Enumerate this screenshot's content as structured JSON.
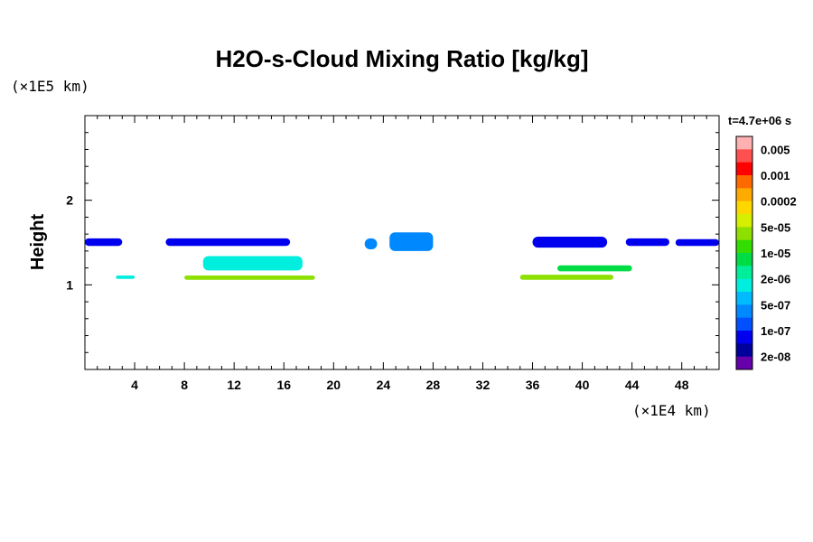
{
  "chart_data": {
    "type": "heatmap",
    "title": "H2O-s-Cloud Mixing Ratio [kg/kg]",
    "ylabel": "Height",
    "x_unit": "(×1E4 km)",
    "y_unit": "(×1E5 km)",
    "time_label": "t=4.7e+06 s",
    "xlim": [
      0,
      51
    ],
    "ylim": [
      0,
      3
    ],
    "x_ticks": [
      4,
      8,
      12,
      16,
      20,
      24,
      28,
      32,
      36,
      40,
      44,
      48
    ],
    "y_ticks": [
      1,
      2
    ],
    "colorbar": {
      "labels": [
        "0.005",
        "0.001",
        "0.0002",
        "5e-05",
        "1e-05",
        "2e-06",
        "5e-07",
        "1e-07",
        "2e-08"
      ],
      "colors": [
        "#ffb0b0",
        "#ff5050",
        "#ff0000",
        "#ff6a00",
        "#ffaa00",
        "#ffd700",
        "#d6ee00",
        "#8ee000",
        "#33dd00",
        "#00dd44",
        "#00ee99",
        "#00eedd",
        "#00bbff",
        "#0088ff",
        "#0050ff",
        "#0000ee",
        "#00009a",
        "#6600aa"
      ]
    },
    "regions": [
      {
        "x": [
          0,
          3
        ],
        "y": [
          1.46,
          1.55
        ],
        "value": "1e-07"
      },
      {
        "x": [
          6.5,
          16.5
        ],
        "y": [
          1.46,
          1.55
        ],
        "value": "1e-07"
      },
      {
        "x": [
          22.5,
          23.5
        ],
        "y": [
          1.42,
          1.55
        ],
        "value": "5e-07"
      },
      {
        "x": [
          24.5,
          28
        ],
        "y": [
          1.4,
          1.62
        ],
        "value": "5e-07"
      },
      {
        "x": [
          36,
          42
        ],
        "y": [
          1.44,
          1.57
        ],
        "value": "1e-07"
      },
      {
        "x": [
          43.5,
          47
        ],
        "y": [
          1.46,
          1.55
        ],
        "value": "1e-07"
      },
      {
        "x": [
          47.5,
          51
        ],
        "y": [
          1.46,
          1.54
        ],
        "value": "1e-07"
      },
      {
        "x": [
          2.5,
          4
        ],
        "y": [
          1.07,
          1.11
        ],
        "value": "2e-06"
      },
      {
        "x": [
          8,
          18.5
        ],
        "y": [
          1.06,
          1.11
        ],
        "value": "5e-05"
      },
      {
        "x": [
          9.5,
          17.5
        ],
        "y": [
          1.17,
          1.34
        ],
        "value": "2e-06"
      },
      {
        "x": [
          35,
          42.5
        ],
        "y": [
          1.06,
          1.12
        ],
        "value": "5e-05"
      },
      {
        "x": [
          38,
          44
        ],
        "y": [
          1.16,
          1.23
        ],
        "value": "1e-05"
      }
    ]
  }
}
